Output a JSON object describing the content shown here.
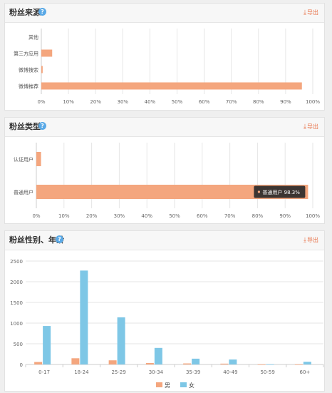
{
  "panels": [
    {
      "title": "粉丝来源",
      "export_label": "导出",
      "chart_data": {
        "type": "bar",
        "orientation": "horizontal",
        "categories": [
          "其他",
          "第三方应用",
          "微博搜索",
          "微博推荐"
        ],
        "series": [
          {
            "name": "",
            "values": [
              0,
              4,
              0.5,
              96
            ]
          }
        ],
        "xlim": [
          0,
          100
        ],
        "xticks": [
          "0%",
          "10%",
          "20%",
          "30%",
          "40%",
          "50%",
          "60%",
          "70%",
          "80%",
          "90%",
          "100%"
        ],
        "grid": true,
        "bar_color": "#f4a67e"
      }
    },
    {
      "title": "粉丝类型",
      "export_label": "导出",
      "chart_data": {
        "type": "bar",
        "orientation": "horizontal",
        "categories": [
          "认证用户",
          "普通用户"
        ],
        "series": [
          {
            "name": "",
            "values": [
              1.7,
              98.3
            ]
          }
        ],
        "xlim": [
          0,
          100
        ],
        "xticks": [
          "0%",
          "10%",
          "20%",
          "30%",
          "40%",
          "50%",
          "60%",
          "70%",
          "80%",
          "90%",
          "100%"
        ],
        "grid": true,
        "bar_color": "#f4a67e",
        "tooltip": {
          "text": "普通用户 98.3%",
          "category_index": 1
        }
      }
    },
    {
      "title": "粉丝性别、年龄",
      "export_label": "导出",
      "chart_data": {
        "type": "bar",
        "categories": [
          "0-17",
          "18-24",
          "25-29",
          "30-34",
          "35-39",
          "40-49",
          "50-59",
          "60+"
        ],
        "series": [
          {
            "name": "男",
            "values": [
              60,
              150,
              100,
              35,
              25,
              20,
              3,
              3
            ],
            "color": "#f4a67e"
          },
          {
            "name": "女",
            "values": [
              930,
              2270,
              1140,
              400,
              140,
              120,
              5,
              65
            ],
            "color": "#7ec7e6"
          }
        ],
        "ylim": [
          0,
          2500
        ],
        "yticks": [
          "0",
          "500",
          "1000",
          "1500",
          "2000",
          "2500"
        ],
        "grid": true,
        "legend": "bottom"
      }
    }
  ]
}
